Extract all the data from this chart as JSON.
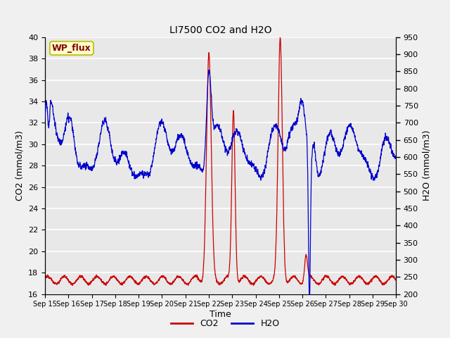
{
  "title": "LI7500 CO2 and H2O",
  "xlabel": "Time",
  "ylabel_left": "CO2 (mmol/m3)",
  "ylabel_right": "H2O (mmol/m3)",
  "annotation": "WP_flux",
  "ylim_left": [
    16,
    40
  ],
  "ylim_right": [
    200,
    950
  ],
  "yticks_left": [
    16,
    18,
    20,
    22,
    24,
    26,
    28,
    30,
    32,
    34,
    36,
    38,
    40
  ],
  "yticks_right": [
    200,
    250,
    300,
    350,
    400,
    450,
    500,
    550,
    600,
    650,
    700,
    750,
    800,
    850,
    900,
    950
  ],
  "xtick_labels": [
    "Sep 15",
    "Sep 16",
    "Sep 17",
    "Sep 18",
    "Sep 19",
    "Sep 20",
    "Sep 21",
    "Sep 22",
    "Sep 23",
    "Sep 24",
    "Sep 25",
    "Sep 26",
    "Sep 27",
    "Sep 28",
    "Sep 29",
    "Sep 30"
  ],
  "co2_color": "#CC0000",
  "h2o_color": "#0000CC",
  "background_color": "#E8E8E8",
  "grid_color": "#FFFFFF",
  "annotation_bg": "#FFFFCC",
  "annotation_border": "#BBBB00",
  "annotation_text_color": "#880000",
  "fig_bg": "#F0F0F0"
}
